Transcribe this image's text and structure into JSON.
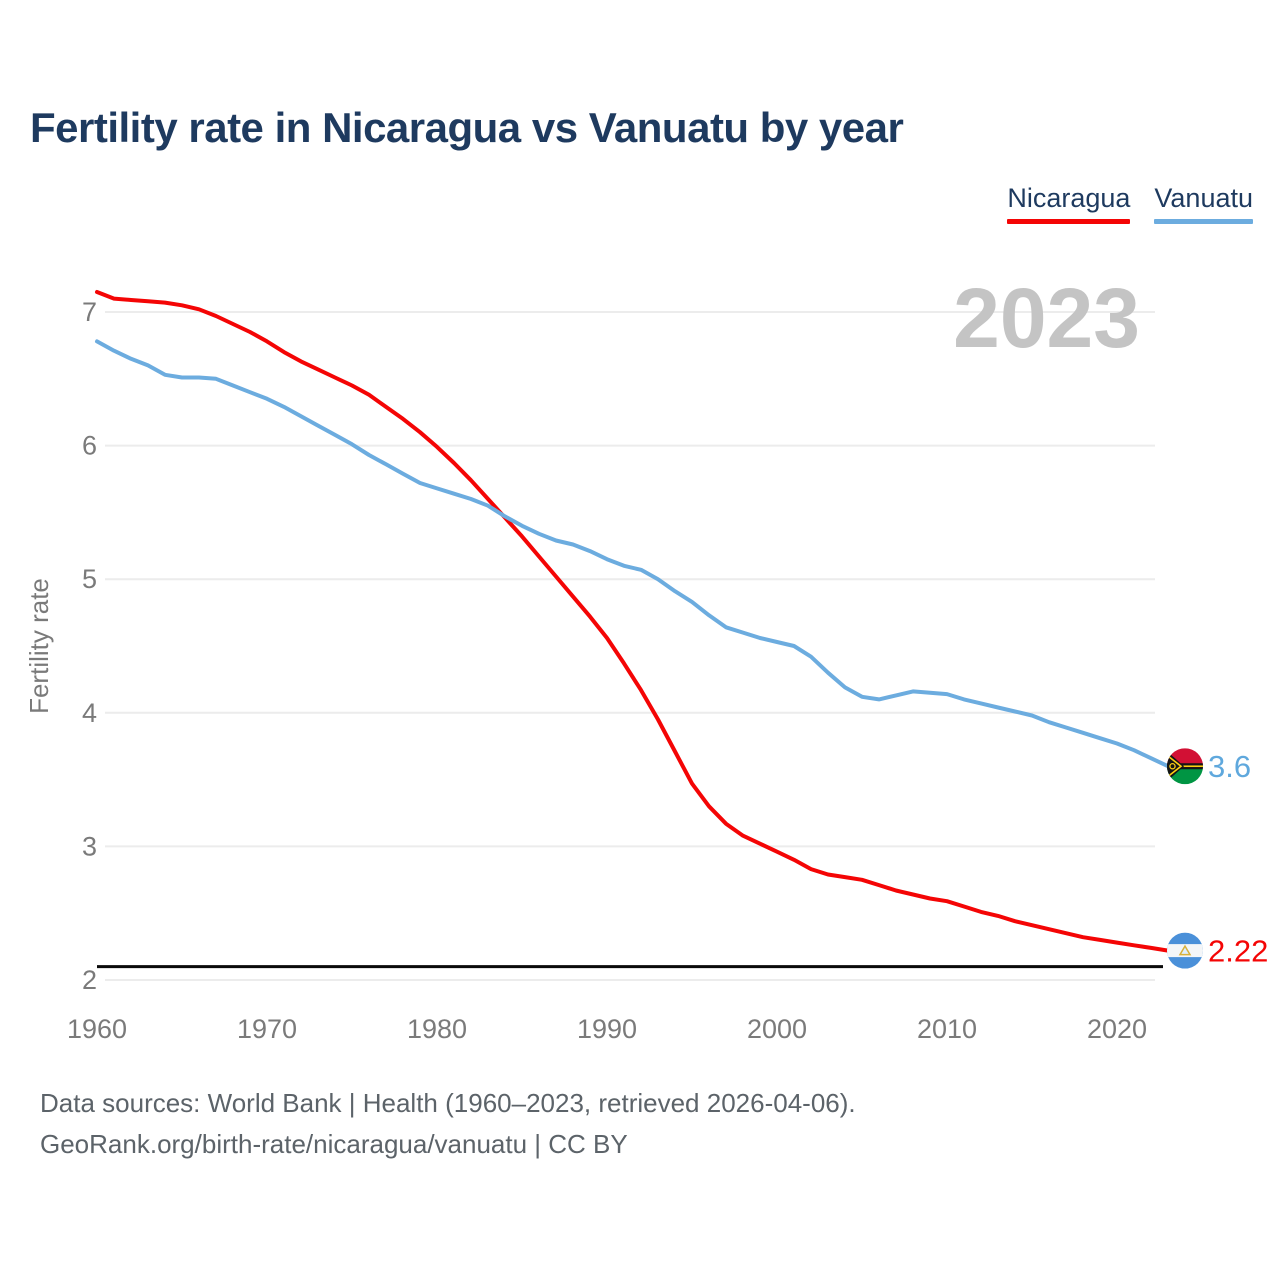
{
  "title": "Fertility rate in Nicaragua vs Vanuatu by year",
  "legend": {
    "position": "top-right",
    "items": [
      {
        "label": "Nicaragua",
        "color": "#f40505"
      },
      {
        "label": "Vanuatu",
        "color": "#6cacdf"
      }
    ]
  },
  "chart_data": {
    "type": "line",
    "title": "Fertility rate in Nicaragua vs Vanuatu by year",
    "xlabel": "",
    "ylabel": "Fertility rate",
    "watermark": "2023",
    "xlim": [
      1960,
      2023
    ],
    "ylim": [
      2,
      7
    ],
    "x_ticks": [
      1960,
      1970,
      1980,
      1990,
      2000,
      2010,
      2020
    ],
    "y_ticks": [
      2,
      3,
      4,
      5,
      6,
      7
    ],
    "grid": "horizontal",
    "x": [
      1960,
      1961,
      1962,
      1963,
      1964,
      1965,
      1966,
      1967,
      1968,
      1969,
      1970,
      1971,
      1972,
      1973,
      1974,
      1975,
      1976,
      1977,
      1978,
      1979,
      1980,
      1981,
      1982,
      1983,
      1984,
      1985,
      1986,
      1987,
      1988,
      1989,
      1990,
      1991,
      1992,
      1993,
      1994,
      1995,
      1996,
      1997,
      1998,
      1999,
      2000,
      2001,
      2002,
      2003,
      2004,
      2005,
      2006,
      2007,
      2008,
      2009,
      2010,
      2011,
      2012,
      2013,
      2014,
      2015,
      2016,
      2017,
      2018,
      2019,
      2020,
      2021,
      2022,
      2023
    ],
    "series": [
      {
        "name": "Nicaragua",
        "color": "#f40505",
        "end_label": "2.22",
        "end_flag": "nicaragua-flag",
        "values": [
          7.15,
          7.1,
          7.09,
          7.08,
          7.07,
          7.05,
          7.02,
          6.97,
          6.91,
          6.85,
          6.78,
          6.7,
          6.63,
          6.57,
          6.51,
          6.45,
          6.38,
          6.29,
          6.2,
          6.1,
          5.99,
          5.87,
          5.74,
          5.6,
          5.46,
          5.32,
          5.17,
          5.02,
          4.87,
          4.72,
          4.56,
          4.37,
          4.17,
          3.95,
          3.71,
          3.47,
          3.3,
          3.17,
          3.08,
          3.02,
          2.96,
          2.9,
          2.83,
          2.79,
          2.77,
          2.75,
          2.71,
          2.67,
          2.64,
          2.61,
          2.59,
          2.55,
          2.51,
          2.48,
          2.44,
          2.41,
          2.38,
          2.35,
          2.32,
          2.3,
          2.28,
          2.26,
          2.24,
          2.22
        ]
      },
      {
        "name": "Vanuatu",
        "color": "#6cacdf",
        "end_label": "3.6",
        "end_flag": "vanuatu-flag",
        "values": [
          6.78,
          6.71,
          6.65,
          6.6,
          6.53,
          6.51,
          6.51,
          6.5,
          6.45,
          6.4,
          6.35,
          6.29,
          6.22,
          6.15,
          6.08,
          6.01,
          5.93,
          5.86,
          5.79,
          5.72,
          5.68,
          5.64,
          5.6,
          5.55,
          5.47,
          5.4,
          5.34,
          5.29,
          5.26,
          5.21,
          5.15,
          5.1,
          5.07,
          5.0,
          4.91,
          4.83,
          4.73,
          4.64,
          4.6,
          4.56,
          4.53,
          4.5,
          4.42,
          4.3,
          4.19,
          4.12,
          4.1,
          4.13,
          4.16,
          4.15,
          4.14,
          4.1,
          4.07,
          4.04,
          4.01,
          3.98,
          3.93,
          3.89,
          3.85,
          3.81,
          3.77,
          3.72,
          3.66,
          3.6
        ]
      }
    ],
    "threshold_line": {
      "value": 2.1,
      "color": "#0a0a0a"
    }
  },
  "styles": {
    "title_color": "#1e3a5f",
    "tick_color": "#7a7a7a",
    "axis_label_color": "#7a7a7a",
    "grid_color": "#ececec",
    "watermark_color": "#c4c4c4",
    "end_label_blue": "#5fa8dd",
    "end_label_red": "#f40505"
  },
  "footer": {
    "line1": "Data sources: World Bank | Health (1960–2023, retrieved 2026-04-06).",
    "line2": "GeoRank.org/birth-rate/nicaragua/vanuatu | CC BY"
  }
}
